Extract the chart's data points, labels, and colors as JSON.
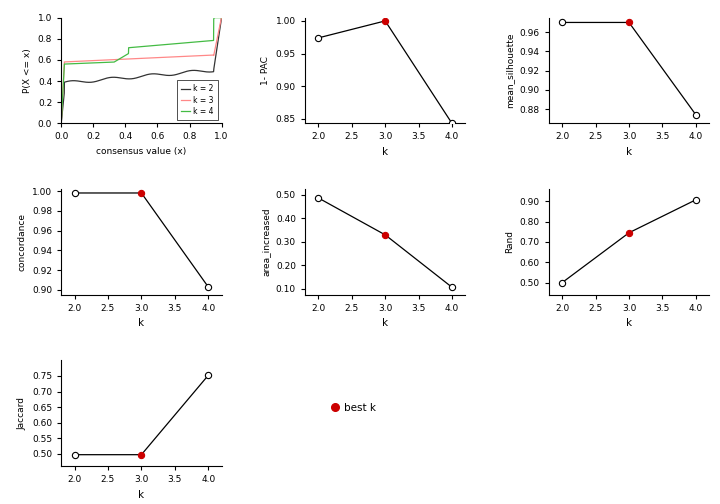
{
  "k_values": [
    2,
    3,
    4
  ],
  "pac": [
    0.974,
    1.0,
    0.843
  ],
  "mean_silhouette": [
    0.97,
    0.97,
    0.874
  ],
  "concordance": [
    0.998,
    0.998,
    0.903
  ],
  "area_increased": [
    0.487,
    0.33,
    0.107
  ],
  "rand": [
    0.5,
    0.745,
    0.907
  ],
  "jaccard": [
    0.497,
    0.497,
    0.752
  ],
  "best_k": 3,
  "line_color": "#000000",
  "best_k_color": "#cc0000",
  "cdf_k2_color": "#333333",
  "cdf_k3_color": "#ff8888",
  "cdf_k4_color": "#44bb44",
  "xlabel": "k",
  "consensus_xlabel": "consensus value (x)",
  "consensus_ylabel": "P(X <= x)",
  "pac_ylabel": "1- PAC",
  "silhouette_ylabel": "mean_silhouette",
  "concordance_ylabel": "concordance",
  "area_ylabel": "area_increased",
  "rand_ylabel": "Rand",
  "jaccard_ylabel": "Jaccard",
  "pac_ylim": [
    0.843,
    1.005
  ],
  "pac_yticks": [
    0.85,
    0.9,
    0.95,
    1.0
  ],
  "silhouette_ylim": [
    0.865,
    0.975
  ],
  "silhouette_yticks": [
    0.88,
    0.9,
    0.92,
    0.94,
    0.96
  ],
  "concordance_ylim": [
    0.895,
    1.002
  ],
  "concordance_yticks": [
    0.9,
    0.92,
    0.94,
    0.96,
    0.98,
    1.0
  ],
  "area_ylim": [
    0.075,
    0.525
  ],
  "area_yticks": [
    0.1,
    0.2,
    0.3,
    0.4,
    0.5
  ],
  "rand_ylim": [
    0.44,
    0.96
  ],
  "rand_yticks": [
    0.5,
    0.6,
    0.7,
    0.8,
    0.9
  ],
  "jaccard_ylim": [
    0.46,
    0.8
  ],
  "jaccard_yticks": [
    0.5,
    0.55,
    0.6,
    0.65,
    0.7,
    0.75
  ]
}
